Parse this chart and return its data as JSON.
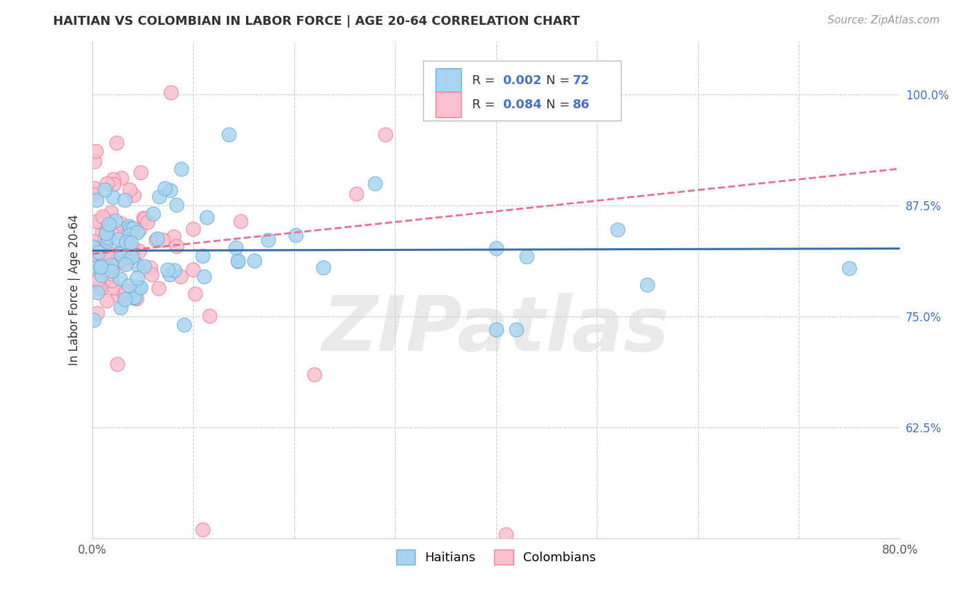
{
  "title": "HAITIAN VS COLOMBIAN IN LABOR FORCE | AGE 20-64 CORRELATION CHART",
  "source": "Source: ZipAtlas.com",
  "ylabel": "In Labor Force | Age 20-64",
  "xlim": [
    0.0,
    0.8
  ],
  "ylim": [
    0.5,
    1.06
  ],
  "xtick_positions": [
    0.0,
    0.8
  ],
  "xtick_labels": [
    "0.0%",
    "80.0%"
  ],
  "ytick_values": [
    0.625,
    0.75,
    0.875,
    1.0
  ],
  "ytick_labels": [
    "62.5%",
    "75.0%",
    "87.5%",
    "100.0%"
  ],
  "haitian_fill": "#A8D4EF",
  "haitian_edge": "#6AAED6",
  "colombian_fill": "#F9C0CE",
  "colombian_edge": "#F08098",
  "haitian_line_color": "#3A6EA5",
  "colombian_line_color": "#E87090",
  "R_haitian": 0.002,
  "N_haitian": 72,
  "R_colombian": 0.084,
  "N_colombian": 86,
  "watermark": "ZIPatlas",
  "background_color": "#FFFFFF",
  "grid_color": "#CCCCCC",
  "title_color": "#333333",
  "source_color": "#999999",
  "axis_label_color": "#4472C4",
  "legend_R_N_color": "#4472C4"
}
